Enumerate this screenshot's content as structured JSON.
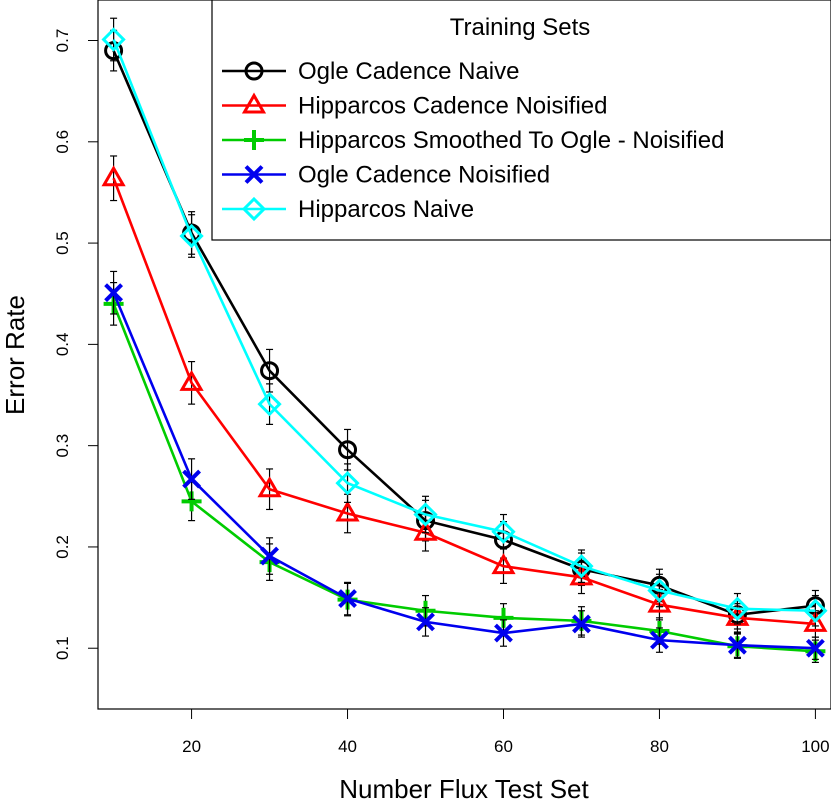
{
  "chart_data": {
    "type": "line",
    "xlabel": "Number Flux Test Set",
    "ylabel": "Error Rate",
    "xlim": [
      8,
      102
    ],
    "ylim": [
      0.04,
      0.74
    ],
    "x_ticks": [
      20,
      40,
      60,
      80,
      100
    ],
    "x_tick_labels": [
      "20",
      "40",
      "60",
      "80",
      "100"
    ],
    "y_ticks": [
      0.1,
      0.2,
      0.3,
      0.4,
      0.5,
      0.6,
      0.7
    ],
    "y_tick_labels": [
      "0.1",
      "0.2",
      "0.3",
      "0.4",
      "0.5",
      "0.6",
      "0.7"
    ],
    "grid": false,
    "legend": {
      "title": "Training Sets",
      "position": "top-right"
    },
    "x": [
      10,
      20,
      30,
      40,
      50,
      60,
      70,
      80,
      90,
      100
    ],
    "series": [
      {
        "name": "Ogle Cadence Naive",
        "color": "#000000",
        "marker": "circle",
        "values": [
          0.69,
          0.51,
          0.374,
          0.296,
          0.226,
          0.207,
          0.178,
          0.162,
          0.133,
          0.142
        ],
        "errors": [
          0.02,
          0.021,
          0.021,
          0.02,
          0.02,
          0.018,
          0.016,
          0.016,
          0.014,
          0.015
        ]
      },
      {
        "name": "Hipparcos Cadence Noisified",
        "color": "#ff0000",
        "marker": "triangle",
        "values": [
          0.564,
          0.362,
          0.257,
          0.233,
          0.214,
          0.181,
          0.17,
          0.143,
          0.13,
          0.124
        ],
        "errors": [
          0.022,
          0.021,
          0.02,
          0.019,
          0.018,
          0.017,
          0.016,
          0.015,
          0.014,
          0.013
        ]
      },
      {
        "name": "Hipparcos Smoothed To Ogle - Noisified",
        "color": "#00cc00",
        "marker": "plus",
        "values": [
          0.44,
          0.245,
          0.185,
          0.148,
          0.137,
          0.13,
          0.127,
          0.117,
          0.102,
          0.097
        ],
        "errors": [
          0.021,
          0.019,
          0.018,
          0.016,
          0.015,
          0.014,
          0.014,
          0.013,
          0.012,
          0.011
        ]
      },
      {
        "name": "Ogle Cadence Noisified",
        "color": "#0000ee",
        "marker": "x",
        "values": [
          0.451,
          0.267,
          0.191,
          0.149,
          0.126,
          0.115,
          0.124,
          0.108,
          0.103,
          0.1
        ],
        "errors": [
          0.021,
          0.02,
          0.018,
          0.016,
          0.014,
          0.013,
          0.013,
          0.012,
          0.012,
          0.011
        ]
      },
      {
        "name": "Hipparcos Naive",
        "color": "#00ffff",
        "marker": "diamond",
        "values": [
          0.701,
          0.507,
          0.341,
          0.263,
          0.232,
          0.215,
          0.181,
          0.157,
          0.139,
          0.137
        ],
        "errors": [
          0.021,
          0.021,
          0.02,
          0.019,
          0.018,
          0.017,
          0.016,
          0.016,
          0.015,
          0.015
        ]
      }
    ]
  }
}
